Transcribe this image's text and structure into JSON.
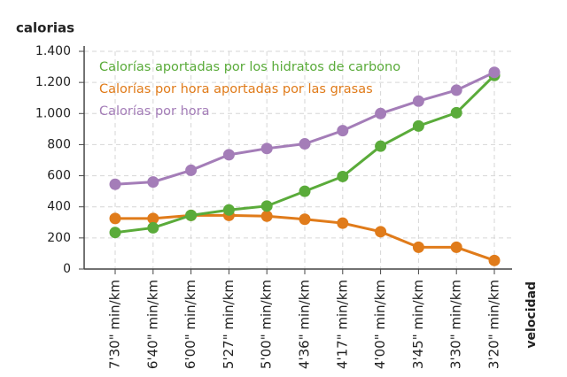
{
  "chart_data": {
    "type": "line",
    "y_label": "calorias",
    "x_label": "velocidad",
    "categories": [
      "7'30\" min/km",
      "6'40\" min/km",
      "6'00\" min/km",
      "5'27\" min/km",
      "5'00\" min/km",
      "4'36\" min/km",
      "4'17\" min/km",
      "4'00\" min/km",
      "3'45\" min/km",
      "3'30\" min/km",
      "3'20\" min/km"
    ],
    "series": [
      {
        "name": "Calorías por hora aportadas por las grasas",
        "color": "#e07b1a",
        "values": [
          325,
          325,
          345,
          345,
          340,
          320,
          295,
          240,
          140,
          140,
          55
        ]
      },
      {
        "name": "Calorías aportadas por los hidratos de carbono",
        "color": "#5aab3a",
        "values": [
          235,
          265,
          345,
          380,
          405,
          500,
          595,
          790,
          920,
          1005,
          1245
        ]
      },
      {
        "name": "Calorías por hora",
        "color": "#a47db8",
        "values": [
          545,
          560,
          635,
          735,
          775,
          805,
          890,
          1000,
          1080,
          1150,
          1265
        ]
      }
    ],
    "legend_order": [
      1,
      0,
      2
    ],
    "ylim": [
      0,
      1400
    ],
    "yticks": [
      0,
      200,
      400,
      600,
      800,
      {
        "value": 1000,
        "label": "1.000"
      },
      {
        "value": 1200,
        "label": "1.200"
      },
      {
        "value": 1400,
        "label": "1.400"
      }
    ],
    "grid": true
  }
}
